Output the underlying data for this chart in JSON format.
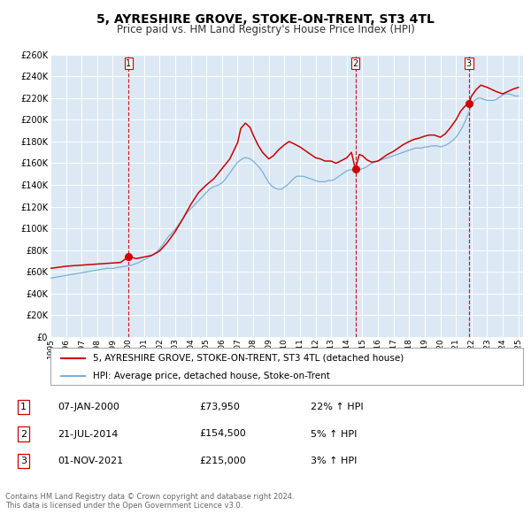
{
  "title": "5, AYRESHIRE GROVE, STOKE-ON-TRENT, ST3 4TL",
  "subtitle": "Price paid vs. HM Land Registry's House Price Index (HPI)",
  "bg_color": "#dce9f5",
  "red_line_color": "#cc0000",
  "blue_line_color": "#7bafd4",
  "vline_color": "#cc0000",
  "ylim": [
    0,
    260000
  ],
  "yticks": [
    0,
    20000,
    40000,
    60000,
    80000,
    100000,
    120000,
    140000,
    160000,
    180000,
    200000,
    220000,
    240000,
    260000
  ],
  "xlim_start": 1995.0,
  "xlim_end": 2025.3,
  "xtick_years": [
    1995,
    1996,
    1997,
    1998,
    1999,
    2000,
    2001,
    2002,
    2003,
    2004,
    2005,
    2006,
    2007,
    2008,
    2009,
    2010,
    2011,
    2012,
    2013,
    2014,
    2015,
    2016,
    2017,
    2018,
    2019,
    2020,
    2021,
    2022,
    2023,
    2024,
    2025
  ],
  "sale1_x": 2000.02,
  "sale1_y": 73950,
  "sale1_label": "1",
  "sale2_x": 2014.55,
  "sale2_y": 154500,
  "sale2_label": "2",
  "sale3_x": 2021.83,
  "sale3_y": 215000,
  "sale3_label": "3",
  "legend_line1": "5, AYRESHIRE GROVE, STOKE-ON-TRENT, ST3 4TL (detached house)",
  "legend_line2": "HPI: Average price, detached house, Stoke-on-Trent",
  "table": [
    {
      "num": "1",
      "date": "07-JAN-2000",
      "price": "£73,950",
      "hpi": "22% ↑ HPI"
    },
    {
      "num": "2",
      "date": "21-JUL-2014",
      "price": "£154,500",
      "hpi": "5% ↑ HPI"
    },
    {
      "num": "3",
      "date": "01-NOV-2021",
      "price": "£215,000",
      "hpi": "3% ↑ HPI"
    }
  ],
  "footnote": "Contains HM Land Registry data © Crown copyright and database right 2024.\nThis data is licensed under the Open Government Licence v3.0.",
  "hpi_years": [
    1995.0,
    1995.2,
    1995.4,
    1995.6,
    1995.8,
    1996.0,
    1996.2,
    1996.4,
    1996.6,
    1996.8,
    1997.0,
    1997.2,
    1997.4,
    1997.6,
    1997.8,
    1998.0,
    1998.2,
    1998.4,
    1998.6,
    1998.8,
    1999.0,
    1999.2,
    1999.4,
    1999.6,
    1999.8,
    2000.0,
    2000.2,
    2000.4,
    2000.6,
    2000.8,
    2001.0,
    2001.2,
    2001.4,
    2001.6,
    2001.8,
    2002.0,
    2002.2,
    2002.4,
    2002.6,
    2002.8,
    2003.0,
    2003.2,
    2003.4,
    2003.6,
    2003.8,
    2004.0,
    2004.2,
    2004.4,
    2004.6,
    2004.8,
    2005.0,
    2005.2,
    2005.4,
    2005.6,
    2005.8,
    2006.0,
    2006.2,
    2006.4,
    2006.6,
    2006.8,
    2007.0,
    2007.2,
    2007.4,
    2007.6,
    2007.8,
    2008.0,
    2008.2,
    2008.4,
    2008.6,
    2008.8,
    2009.0,
    2009.2,
    2009.4,
    2009.6,
    2009.8,
    2010.0,
    2010.2,
    2010.4,
    2010.6,
    2010.8,
    2011.0,
    2011.2,
    2011.4,
    2011.6,
    2011.8,
    2012.0,
    2012.2,
    2012.4,
    2012.6,
    2012.8,
    2013.0,
    2013.2,
    2013.4,
    2013.6,
    2013.8,
    2014.0,
    2014.2,
    2014.4,
    2014.6,
    2014.8,
    2015.0,
    2015.2,
    2015.4,
    2015.6,
    2015.8,
    2016.0,
    2016.2,
    2016.4,
    2016.6,
    2016.8,
    2017.0,
    2017.2,
    2017.4,
    2017.6,
    2017.8,
    2018.0,
    2018.2,
    2018.4,
    2018.6,
    2018.8,
    2019.0,
    2019.2,
    2019.4,
    2019.6,
    2019.8,
    2020.0,
    2020.2,
    2020.4,
    2020.6,
    2020.8,
    2021.0,
    2021.2,
    2021.4,
    2021.6,
    2021.8,
    2022.0,
    2022.2,
    2022.4,
    2022.6,
    2022.8,
    2023.0,
    2023.2,
    2023.4,
    2023.6,
    2023.8,
    2024.0,
    2024.2,
    2024.4,
    2024.6,
    2024.8,
    2025.0
  ],
  "hpi_vals": [
    54000,
    54500,
    55000,
    55500,
    56000,
    56500,
    57000,
    57500,
    58000,
    58500,
    59000,
    59500,
    60000,
    60500,
    61000,
    61500,
    62000,
    62500,
    63000,
    63000,
    63000,
    63500,
    64000,
    64500,
    65000,
    65500,
    66000,
    67000,
    68000,
    69500,
    71000,
    72500,
    74000,
    76000,
    78000,
    81000,
    85000,
    89000,
    93000,
    96000,
    99000,
    103000,
    107000,
    111000,
    115000,
    118000,
    121000,
    124000,
    127000,
    130000,
    133000,
    136000,
    138000,
    139000,
    140000,
    142000,
    145000,
    149000,
    153000,
    157000,
    161000,
    163000,
    165000,
    165000,
    164000,
    162000,
    159000,
    156000,
    152000,
    147000,
    142000,
    139000,
    137000,
    136000,
    136000,
    138000,
    140000,
    143000,
    146000,
    148000,
    148000,
    148000,
    147000,
    146000,
    145000,
    144000,
    143000,
    143000,
    143000,
    144000,
    144000,
    145000,
    147000,
    149000,
    151000,
    153000,
    154000,
    154000,
    154000,
    154000,
    155000,
    156000,
    158000,
    160000,
    161000,
    162000,
    163000,
    164000,
    165000,
    166000,
    167000,
    168000,
    169000,
    170000,
    171000,
    172000,
    173000,
    174000,
    174000,
    174000,
    175000,
    175000,
    176000,
    176000,
    176000,
    175000,
    176000,
    177000,
    179000,
    181000,
    184000,
    188000,
    193000,
    199000,
    206000,
    213000,
    218000,
    220000,
    220000,
    219000,
    218000,
    218000,
    218000,
    219000,
    221000,
    223000,
    224000,
    224000,
    223000,
    222000,
    222000
  ],
  "price_years": [
    1995.0,
    1995.5,
    1996.0,
    1996.5,
    1997.0,
    1997.5,
    1998.0,
    1998.5,
    1999.0,
    1999.5,
    2000.02,
    2000.5,
    2001.0,
    2001.5,
    2002.0,
    2002.5,
    2003.0,
    2003.5,
    2004.0,
    2004.5,
    2005.0,
    2005.5,
    2006.0,
    2006.5,
    2007.0,
    2007.2,
    2007.5,
    2007.8,
    2008.0,
    2008.3,
    2008.6,
    2009.0,
    2009.3,
    2009.6,
    2010.0,
    2010.3,
    2010.6,
    2011.0,
    2011.3,
    2011.6,
    2012.0,
    2012.3,
    2012.6,
    2013.0,
    2013.3,
    2013.6,
    2014.0,
    2014.3,
    2014.55,
    2014.8,
    2015.0,
    2015.3,
    2015.6,
    2016.0,
    2016.3,
    2016.6,
    2017.0,
    2017.3,
    2017.6,
    2018.0,
    2018.3,
    2018.6,
    2019.0,
    2019.3,
    2019.6,
    2020.0,
    2020.3,
    2020.6,
    2021.0,
    2021.3,
    2021.6,
    2021.83,
    2022.0,
    2022.3,
    2022.6,
    2023.0,
    2023.3,
    2023.6,
    2024.0,
    2024.3,
    2024.6,
    2025.0
  ],
  "price_vals": [
    63000,
    64000,
    65000,
    65500,
    66000,
    66500,
    67000,
    67500,
    68000,
    68500,
    73950,
    72000,
    73500,
    75000,
    79000,
    87000,
    97000,
    109000,
    122000,
    133000,
    140000,
    146000,
    155000,
    164000,
    179000,
    192000,
    197000,
    193000,
    186000,
    177000,
    170000,
    164000,
    167000,
    172000,
    177000,
    180000,
    178000,
    175000,
    172000,
    169000,
    165000,
    164000,
    162000,
    162000,
    160000,
    162000,
    165000,
    170000,
    154500,
    168000,
    167000,
    163000,
    161000,
    162000,
    165000,
    168000,
    171000,
    174000,
    177000,
    180000,
    182000,
    183000,
    185000,
    186000,
    186000,
    184000,
    187000,
    192000,
    200000,
    208000,
    213000,
    215000,
    222000,
    228000,
    232000,
    230000,
    228000,
    226000,
    224000,
    226000,
    228000,
    230000
  ]
}
